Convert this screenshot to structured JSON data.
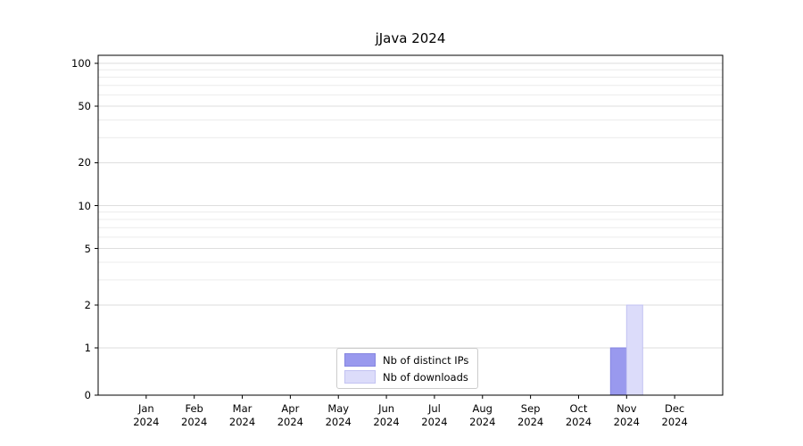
{
  "chart_data": {
    "type": "bar",
    "title": "jJava 2024",
    "categories": [
      "Jan",
      "Feb",
      "Mar",
      "Apr",
      "May",
      "Jun",
      "Jul",
      "Aug",
      "Sep",
      "Oct",
      "Nov",
      "Dec"
    ],
    "category_year": "2024",
    "series": [
      {
        "name": "Nb of distinct IPs",
        "color": "#9999ee",
        "border": "#8585e0",
        "values": [
          0,
          0,
          0,
          0,
          0,
          0,
          0,
          0,
          0,
          0,
          1,
          0
        ]
      },
      {
        "name": "Nb of downloads",
        "color": "#dcdcfa",
        "border": "#c2c2f2",
        "values": [
          0,
          0,
          0,
          0,
          0,
          0,
          0,
          0,
          0,
          0,
          2,
          0
        ]
      }
    ],
    "yticks": [
      0,
      1,
      2,
      5,
      10,
      20,
      50,
      100
    ],
    "minor_gridlines": [
      3,
      4,
      6,
      7,
      8,
      9,
      30,
      40,
      60,
      70,
      80,
      90
    ],
    "ylim": [
      0,
      100
    ],
    "scale": "symlog",
    "grid": true,
    "legend_position": "bottom-center"
  },
  "colors": {
    "background": "#ffffff",
    "axis": "#000000",
    "grid_major": "#dedede",
    "grid_minor": "#ececec",
    "tick": "#000000",
    "text": "#000000"
  }
}
